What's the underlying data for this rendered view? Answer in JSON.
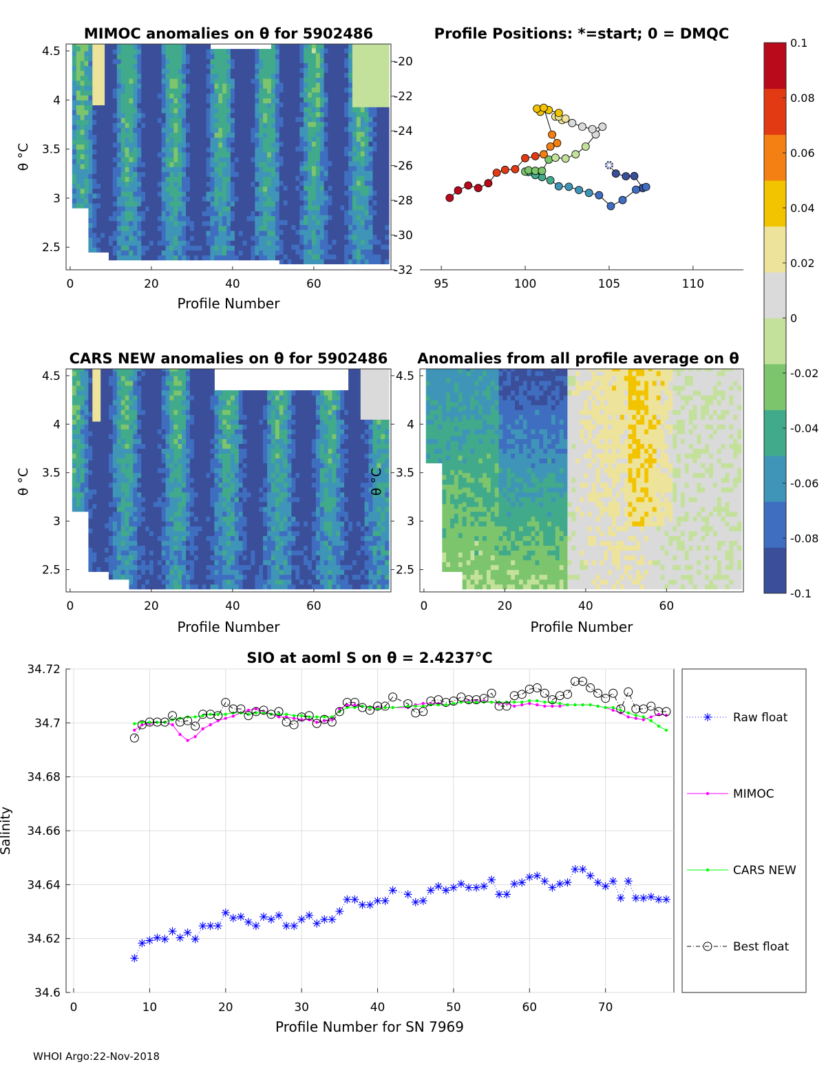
{
  "footer": "WHOI Argo:22-Nov-2018",
  "colors": {
    "raw_float": "#0000FF",
    "mimoc": "#FF00FF",
    "cars_new": "#00FF00",
    "best_float": "#000000",
    "grid": "#DDDDDD",
    "colormap": [
      "#3A4E9A",
      "#3F6EC0",
      "#3F95B8",
      "#41AA8B",
      "#7CC56C",
      "#C3E19B",
      "#DADADA",
      "#EEE39A",
      "#F2C400",
      "#F47F12",
      "#E23B14",
      "#B90A1C"
    ]
  },
  "chart_data": [
    {
      "id": "mimoc",
      "type": "heatmap",
      "title": "MIMOC anomalies on θ  for 5902486",
      "xlabel": "Profile Number",
      "ylabel": "θ °C",
      "xlim": [
        -1,
        79
      ],
      "ylim": [
        2.27,
        4.57
      ],
      "xticks": [
        0,
        20,
        40,
        60
      ],
      "yticks": [
        2.5,
        3,
        3.5,
        4,
        4.5
      ],
      "ytick_labels": [
        "2.5",
        "3",
        "3.5",
        "4",
        "4.5"
      ]
    },
    {
      "id": "positions",
      "type": "scatter",
      "title": "Profile Positions: *=start; 0 = DMQC",
      "xlabel": "",
      "ylabel": "",
      "xlim": [
        92,
        113
      ],
      "ylim": [
        -32,
        -19
      ],
      "xticks": [
        95,
        100,
        105,
        110
      ],
      "yticks": [
        -32,
        -30,
        -28,
        -26,
        -24,
        -22,
        -20
      ],
      "ytick_labels": [
        "-32",
        "-30",
        "-28",
        "-26",
        "-24",
        "-22",
        "-20"
      ],
      "lon": [
        105.0,
        105.4,
        106.0,
        106.5,
        107.0,
        107.2,
        106.6,
        105.8,
        105.1,
        104.4,
        103.8,
        103.2,
        102.6,
        102.0,
        101.5,
        101.0,
        100.6,
        100.2,
        100.0,
        100.2,
        100.6,
        101.0,
        101.4,
        101.8,
        102.4,
        103.0,
        103.6,
        104.2,
        104.6,
        104.0,
        103.4,
        102.8,
        102.2,
        101.8,
        102.0,
        102.4,
        102.0,
        101.4,
        100.9,
        100.7,
        101.1,
        101.6,
        101.9,
        101.5,
        101.1,
        100.6,
        100.0,
        99.4,
        98.8,
        98.3,
        97.8,
        97.2,
        96.6,
        96.0,
        95.5
      ]
    },
    {
      "id": "cars",
      "type": "heatmap",
      "title": "CARS NEW anomalies on θ for 5902486",
      "xlabel": "Profile Number",
      "ylabel": "θ °C",
      "xlim": [
        -1,
        79
      ],
      "ylim": [
        2.27,
        4.57
      ],
      "xticks": [
        0,
        20,
        40,
        60
      ],
      "yticks": [
        2.5,
        3,
        3.5,
        4,
        4.5
      ],
      "ytick_labels": [
        "2.5",
        "3",
        "3.5",
        "4",
        "4.5"
      ]
    },
    {
      "id": "allavg",
      "type": "heatmap",
      "title": "Anomalies from all profile average on θ",
      "xlabel": "Profile Number",
      "ylabel": "θ °C",
      "xlim": [
        -1,
        79
      ],
      "ylim": [
        2.27,
        4.57
      ],
      "xticks": [
        0,
        20,
        40,
        60
      ],
      "yticks": [
        2.5,
        3,
        3.5,
        4,
        4.5
      ],
      "ytick_labels": [
        "2.5",
        "3",
        "3.5",
        "4",
        "4.5"
      ]
    },
    {
      "id": "colorbar",
      "type": "heatmap",
      "title": "",
      "range": [
        -0.1,
        0.1
      ],
      "tick_values": [
        0.1,
        0.08,
        0.06,
        0.04,
        0.02,
        0,
        -0.02,
        -0.04,
        -0.06,
        -0.08,
        -0.1
      ],
      "tick_labels": [
        "0.1",
        "0.08",
        "0.06",
        "0.04",
        "0.02",
        "0",
        "-0.02",
        "-0.04",
        "-0.06",
        "-0.08",
        "-0.1"
      ]
    },
    {
      "id": "salinity",
      "type": "line",
      "title": "SIO at aoml S on θ = 2.4237°C",
      "xlabel": "Profile Number for SN 7969",
      "ylabel": "Salinity",
      "xlim": [
        -1,
        79
      ],
      "ylim": [
        34.6,
        34.72
      ],
      "xticks": [
        0,
        10,
        20,
        30,
        40,
        50,
        60,
        70
      ],
      "yticks": [
        34.6,
        34.62,
        34.64,
        34.66,
        34.68,
        34.7,
        34.72
      ],
      "ytick_labels": [
        "34.6",
        "34.62",
        "34.64",
        "34.66",
        "34.68",
        "34.7",
        "34.72"
      ],
      "x": [
        8,
        9,
        10,
        11,
        12,
        13,
        14,
        15,
        16,
        17,
        18,
        19,
        20,
        21,
        22,
        23,
        24,
        25,
        26,
        27,
        28,
        29,
        30,
        31,
        32,
        33,
        34,
        35,
        36,
        37,
        38,
        39,
        40,
        41,
        42,
        44,
        45,
        46,
        47,
        48,
        49,
        50,
        51,
        52,
        53,
        54,
        55,
        56,
        57,
        58,
        59,
        60,
        61,
        62,
        63,
        64,
        65,
        66,
        67,
        68,
        69,
        70,
        71,
        72,
        73,
        74,
        75,
        76,
        77,
        78
      ],
      "series": [
        {
          "name": "Raw float",
          "values": [
            34.6127,
            34.6183,
            34.6193,
            34.6203,
            34.6198,
            34.6227,
            34.6203,
            34.6222,
            34.6198,
            34.6247,
            34.6247,
            34.6247,
            34.6296,
            34.6276,
            34.6281,
            34.6261,
            34.6247,
            34.6281,
            34.6271,
            34.6286,
            34.6247,
            34.6247,
            34.6271,
            34.6286,
            34.6256,
            34.6271,
            34.6271,
            34.6301,
            34.6345,
            34.6345,
            34.6325,
            34.6325,
            34.634,
            34.634,
            34.6379,
            34.6364,
            34.6335,
            34.634,
            34.6379,
            34.6394,
            34.6379,
            34.6389,
            34.6403,
            34.6389,
            34.6389,
            34.6394,
            34.6418,
            34.6364,
            34.6364,
            34.6403,
            34.6408,
            34.6428,
            34.6433,
            34.6413,
            34.6389,
            34.6403,
            34.6408,
            34.6457,
            34.6457,
            34.6433,
            34.6408,
            34.6394,
            34.6413,
            34.635,
            34.6413,
            34.635,
            34.635,
            34.6355,
            34.6345,
            34.6345
          ]
        },
        {
          "name": "MIMOC",
          "values": [
            34.6973,
            34.6993,
            34.6997,
            34.7002,
            34.7002,
            34.6993,
            34.6957,
            34.6935,
            34.6949,
            34.6978,
            34.6993,
            34.7008,
            34.7017,
            34.7025,
            34.7038,
            34.7047,
            34.7052,
            34.7042,
            34.7032,
            34.7022,
            34.7022,
            34.7017,
            34.7012,
            34.7012,
            34.7002,
            34.7008,
            34.7012,
            34.7052,
            34.7067,
            34.7067,
            34.7062,
            34.7057,
            34.7057,
            34.7057,
            34.7057,
            34.7057,
            34.7067,
            34.7072,
            34.7072,
            34.7072,
            34.7067,
            34.7072,
            34.7077,
            34.7082,
            34.7082,
            34.7082,
            34.7077,
            34.7072,
            34.7072,
            34.7062,
            34.7067,
            34.7072,
            34.7067,
            34.7062,
            34.7062,
            34.7062,
            34.7067,
            34.7067,
            34.7067,
            34.7067,
            34.7062,
            34.7057,
            34.7047,
            34.7037,
            34.7022,
            34.7017,
            34.7012,
            34.7022,
            34.7032,
            34.7028
          ]
        },
        {
          "name": "CARS NEW",
          "values": [
            34.6997,
            34.7002,
            34.7002,
            34.7002,
            34.7002,
            34.7012,
            34.7017,
            34.7022,
            34.7022,
            34.7027,
            34.7032,
            34.7032,
            34.7032,
            34.7037,
            34.7037,
            34.7032,
            34.7037,
            34.7037,
            34.7032,
            34.7032,
            34.7032,
            34.7027,
            34.7027,
            34.7022,
            34.7022,
            34.7022,
            34.7022,
            34.7042,
            34.7057,
            34.7057,
            34.7062,
            34.7057,
            34.7052,
            34.7057,
            34.7057,
            34.7062,
            34.7062,
            34.7062,
            34.7067,
            34.7067,
            34.7067,
            34.7072,
            34.7077,
            34.7077,
            34.7077,
            34.7077,
            34.7077,
            34.7077,
            34.7077,
            34.7077,
            34.7077,
            34.7082,
            34.7082,
            34.7077,
            34.7077,
            34.7072,
            34.7067,
            34.7067,
            34.7067,
            34.7067,
            34.7062,
            34.7057,
            34.7057,
            34.7047,
            34.7037,
            34.7028,
            34.7022,
            34.7008,
            34.6988,
            34.6973
          ]
        },
        {
          "name": "Best float",
          "values": [
            34.6944,
            34.6993,
            34.7003,
            34.7003,
            34.7003,
            34.7027,
            34.7003,
            34.7008,
            34.6988,
            34.7032,
            34.7032,
            34.7027,
            34.7076,
            34.7052,
            34.7052,
            34.7027,
            34.7042,
            34.7047,
            34.7032,
            34.7042,
            34.7003,
            34.6993,
            34.7022,
            34.7027,
            34.6998,
            34.7013,
            34.7003,
            34.7042,
            34.7076,
            34.7076,
            34.7057,
            34.7047,
            34.7062,
            34.7062,
            34.7096,
            34.7071,
            34.7037,
            34.7042,
            34.7081,
            34.7086,
            34.7076,
            34.7081,
            34.7096,
            34.7086,
            34.7086,
            34.7091,
            34.711,
            34.7062,
            34.7062,
            34.7101,
            34.7106,
            34.7125,
            34.713,
            34.711,
            34.7086,
            34.7101,
            34.7106,
            34.7154,
            34.7154,
            34.713,
            34.711,
            34.7091,
            34.711,
            34.7052,
            34.7115,
            34.7052,
            34.7052,
            34.7062,
            34.7042,
            34.7042
          ]
        }
      ]
    }
  ]
}
